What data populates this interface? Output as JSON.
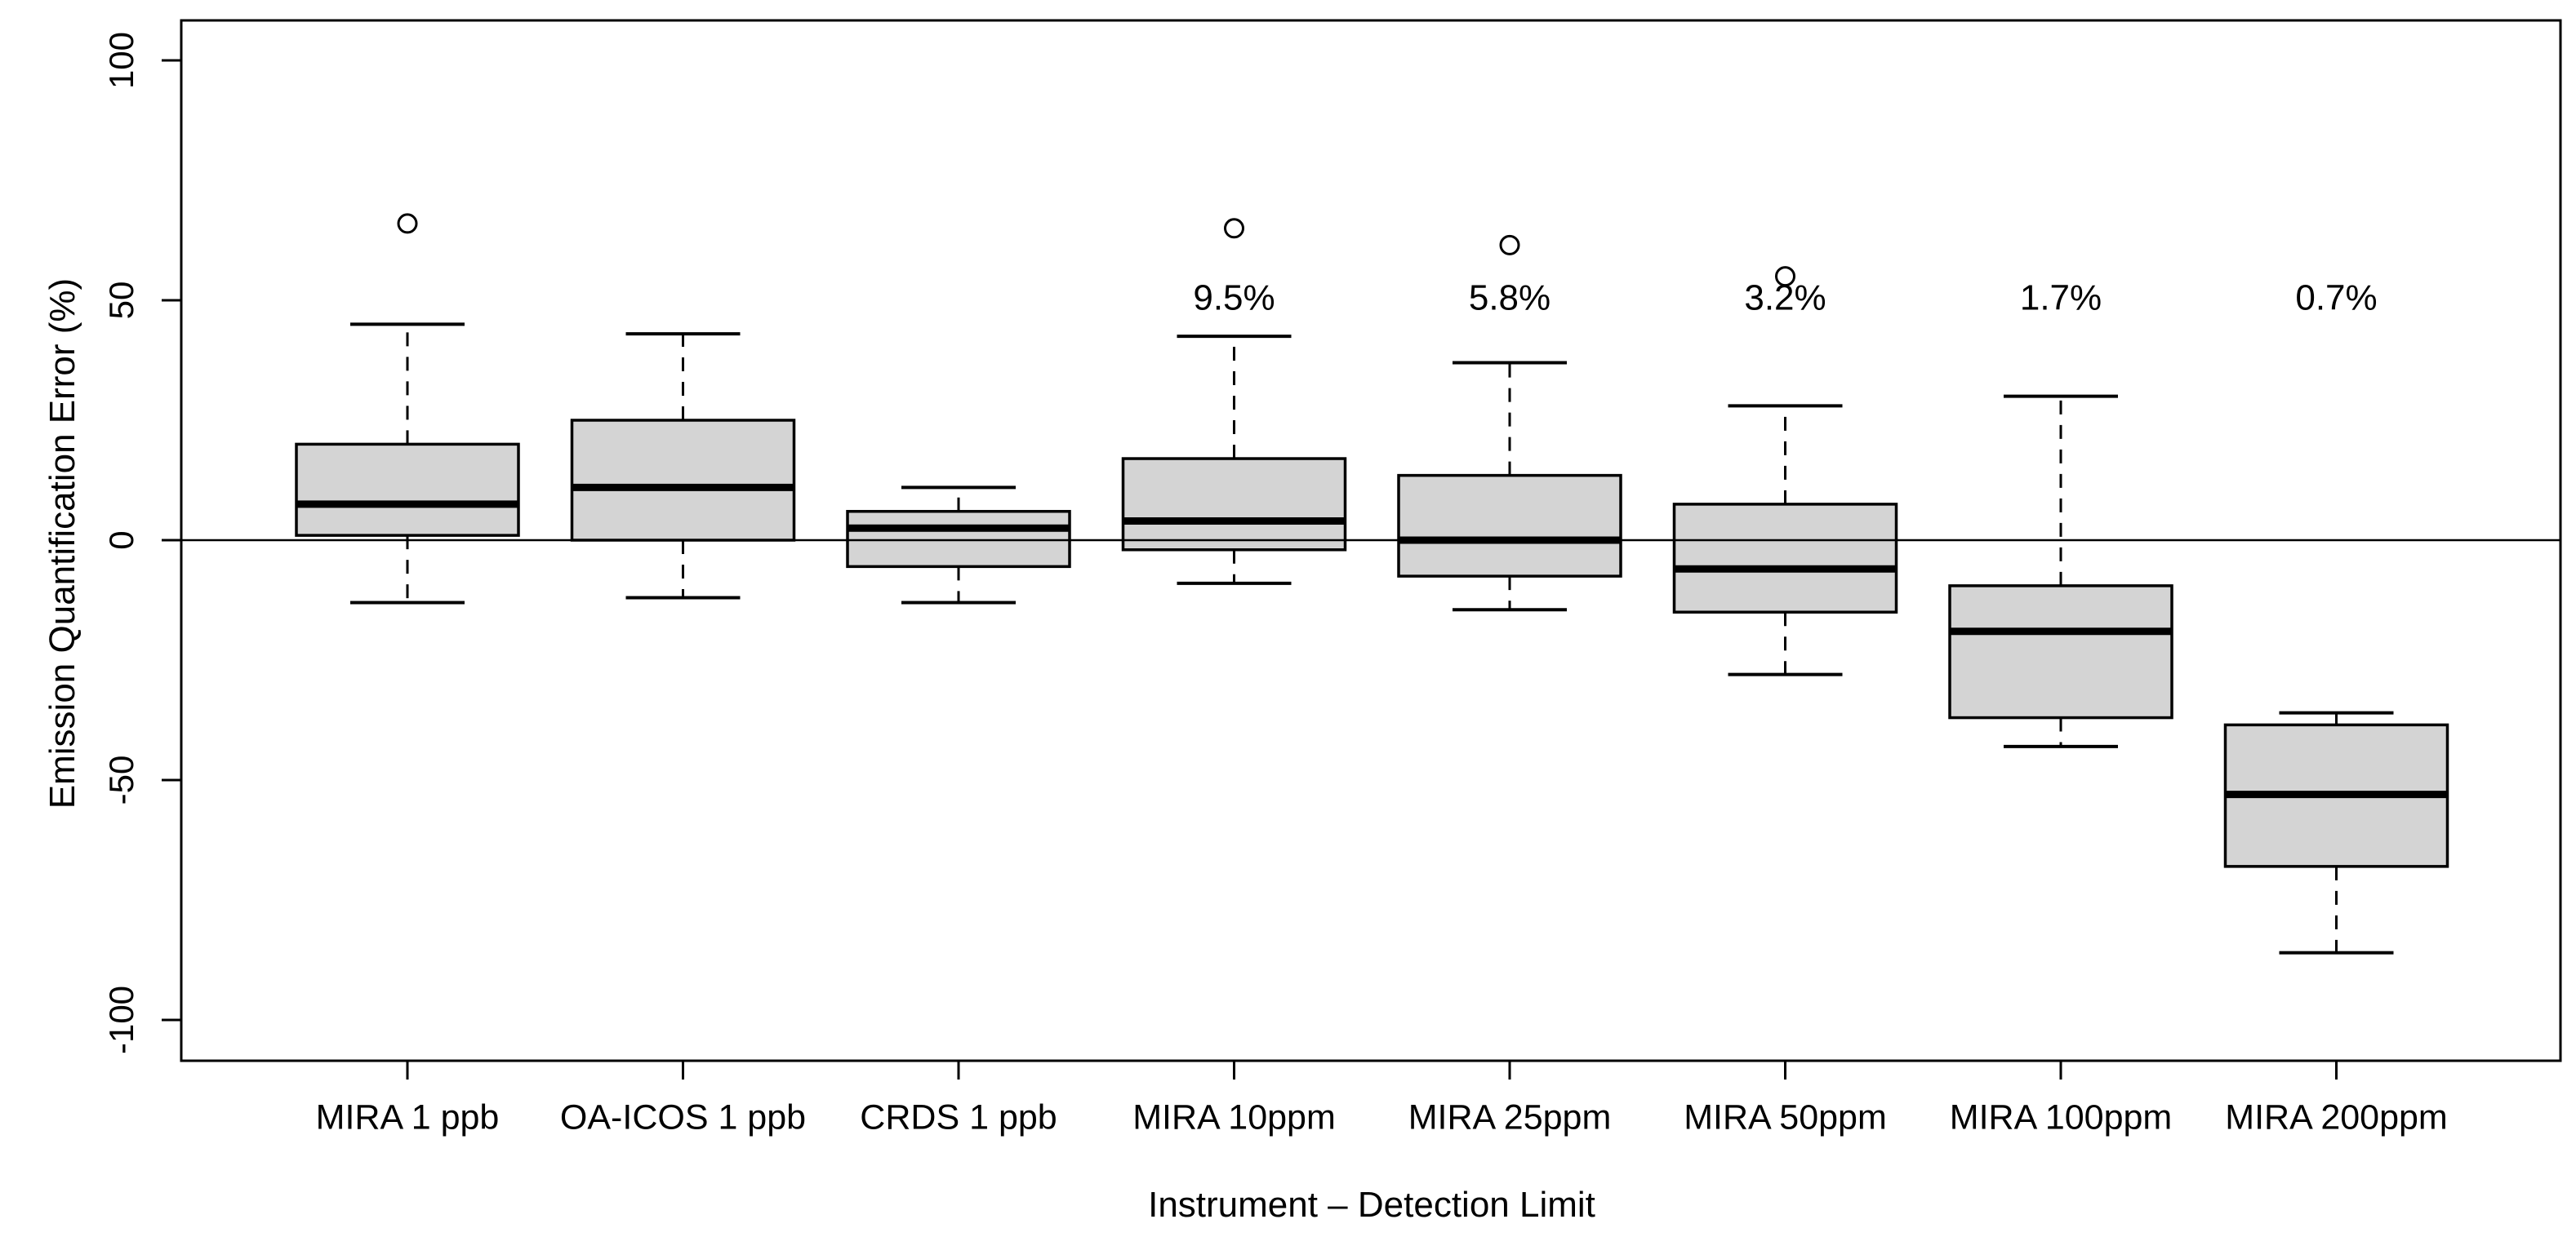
{
  "chart_data": {
    "type": "boxplot",
    "title": "",
    "xlabel": "Instrument – Detection Limit",
    "ylabel": "Emission Quantification Error (%)",
    "y_ticks": [
      100,
      50,
      0,
      -50,
      -100
    ],
    "ylim": [
      -108,
      108
    ],
    "reference_line_y": 0,
    "grid": false,
    "legend": null,
    "box_fill": "#d4d4d4",
    "line_color": "#000000",
    "annotation_y": 50,
    "categories": [
      "MIRA 1 ppb",
      "OA-ICOS 1 ppb",
      "CRDS 1 ppb",
      "MIRA 10ppm",
      "MIRA 25ppm",
      "MIRA 50ppm",
      "MIRA 100ppm",
      "MIRA 200ppm"
    ],
    "boxes": [
      {
        "label": "MIRA 1 ppb",
        "lower_whisker": -13,
        "q1": 1,
        "median": 7.5,
        "q3": 20,
        "upper_whisker": 45,
        "outliers": [
          66
        ],
        "annotation": ""
      },
      {
        "label": "OA-ICOS 1 ppb",
        "lower_whisker": -12,
        "q1": 0,
        "median": 11,
        "q3": 25,
        "upper_whisker": 43,
        "outliers": [],
        "annotation": ""
      },
      {
        "label": "CRDS 1 ppb",
        "lower_whisker": -13,
        "q1": -5.5,
        "median": 2.5,
        "q3": 6,
        "upper_whisker": 11,
        "outliers": [],
        "annotation": ""
      },
      {
        "label": "MIRA 10ppm",
        "lower_whisker": -9,
        "q1": -2,
        "median": 4,
        "q3": 17,
        "upper_whisker": 42.5,
        "outliers": [
          65
        ],
        "annotation": "9.5%"
      },
      {
        "label": "MIRA 25ppm",
        "lower_whisker": -14.5,
        "q1": -7.5,
        "median": 0,
        "q3": 13.5,
        "upper_whisker": 37,
        "outliers": [
          61.5
        ],
        "annotation": "5.8%"
      },
      {
        "label": "MIRA 50ppm",
        "lower_whisker": -28,
        "q1": -15,
        "median": -6,
        "q3": 7.5,
        "upper_whisker": 28,
        "outliers": [
          55
        ],
        "annotation": "3.2%"
      },
      {
        "label": "MIRA 100ppm",
        "lower_whisker": -43,
        "q1": -37,
        "median": -19,
        "q3": -9.5,
        "upper_whisker": 30,
        "outliers": [],
        "annotation": "1.7%"
      },
      {
        "label": "MIRA 200ppm",
        "lower_whisker": -86,
        "q1": -68,
        "median": -53,
        "q3": -38.5,
        "upper_whisker": -36,
        "outliers": [],
        "annotation": "0.7%"
      }
    ]
  }
}
